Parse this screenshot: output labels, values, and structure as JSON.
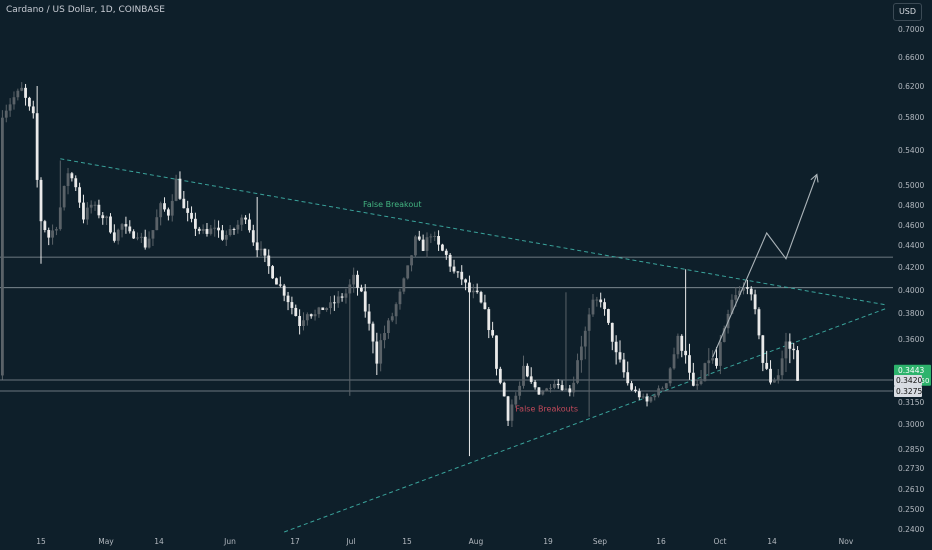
{
  "header": {
    "title": "Cardano / US Dollar, 1D, COINBASE",
    "currency_button": "USD"
  },
  "colors": {
    "background": "#0e1f2a",
    "up": "#5a6268",
    "down": "#eaeaea",
    "trendline": "#3aa39b",
    "level_line": "#8a959c",
    "projection": "#aab3b8",
    "breakout_label": "#43b581",
    "false_breakouts_label": "#c0495a",
    "axis_text": "#b2b8bf",
    "price_badge": "#2db36c",
    "level_badge": "#d8dce2"
  },
  "chart_data": {
    "type": "candlestick",
    "y_axis_ticks": [
      "0.7000",
      "0.6600",
      "0.6200",
      "0.5800",
      "0.5400",
      "0.5000",
      "0.4800",
      "0.4600",
      "0.4400",
      "0.4200",
      "0.4000",
      "0.3800",
      "0.3600",
      "0.3420",
      "0.3275",
      "0.3150",
      "0.3000",
      "0.2850",
      "0.2730",
      "0.2610",
      "0.2500",
      "0.2400"
    ],
    "x_axis_ticks": [
      "15",
      "May",
      "14",
      "Jun",
      "17",
      "Jul",
      "15",
      "Aug",
      "19",
      "Sep",
      "16",
      "Oct",
      "14",
      "Nov"
    ],
    "horizontal_levels": [
      0.429,
      0.402,
      0.342,
      0.3275
    ],
    "badges": [
      {
        "label": "0.3443",
        "sub": "01:23:50",
        "value": 0.3443,
        "style": "current"
      },
      {
        "label": "0.3420",
        "value": 0.342,
        "style": "level"
      },
      {
        "label": "0.3275",
        "value": 0.3275,
        "style": "level"
      }
    ],
    "annotations": [
      {
        "text": "False Breakout",
        "date": "2021-07-15",
        "price": 0.478,
        "color_key": "breakout_label"
      },
      {
        "text": "False Breakouts",
        "date": "2021-08-24",
        "price": 0.3085,
        "color_key": "false_breakouts_label"
      }
    ],
    "descending_trendline": [
      [
        "2021-04-20",
        0.53
      ],
      [
        "2021-11-20",
        0.387
      ]
    ],
    "ascending_trendline": [
      [
        "2021-06-17",
        0.2385
      ],
      [
        "2021-11-20",
        0.384
      ]
    ],
    "projection_path": [
      [
        "2021-10-06",
        0.352
      ],
      [
        "2021-10-20",
        0.452
      ],
      [
        "2021-10-25",
        0.4275
      ],
      [
        "2021-11-02",
        0.512
      ]
    ],
    "candles": []
  }
}
